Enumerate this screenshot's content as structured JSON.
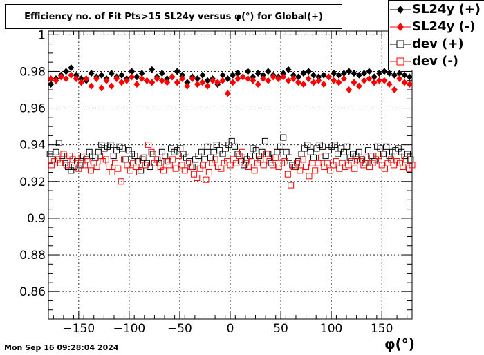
{
  "chart_data": {
    "type": "scatter",
    "title": "Efficiency no. of Fit Pts>15 SL24y versus φ(°) for Global(+)",
    "xlabel": "φ(°)",
    "ylabel": "",
    "xlim": [
      -180,
      180
    ],
    "ylim": [
      0.845,
      1.002
    ],
    "xticks": [
      -150,
      -100,
      -50,
      0,
      50,
      100,
      150
    ],
    "xtick_labels": [
      "−150",
      "−100",
      "−50",
      "0",
      "50",
      "100",
      "150"
    ],
    "yticks": [
      0.86,
      0.88,
      0.9,
      0.92,
      0.94,
      0.96,
      0.98,
      1
    ],
    "ytick_labels": [
      "0.86",
      "0.88",
      "0.9",
      "0.92",
      "0.94",
      "0.96",
      "0.98",
      "1"
    ],
    "grid": true,
    "legend_position": "top-right",
    "series": [
      {
        "name": "SL24y (+)",
        "color": "#000000",
        "marker": "filled-diamond",
        "values_start": -177.5,
        "x_step": 5,
        "values": [
          0.973,
          0.976,
          0.978,
          0.98,
          0.982,
          0.978,
          0.976,
          0.975,
          0.979,
          0.977,
          0.978,
          0.976,
          0.979,
          0.977,
          0.978,
          0.976,
          0.98,
          0.977,
          0.979,
          0.975,
          0.981,
          0.977,
          0.979,
          0.976,
          0.977,
          0.98,
          0.978,
          0.974,
          0.977,
          0.976,
          0.978,
          0.975,
          0.976,
          0.973,
          0.978,
          0.976,
          0.978,
          0.979,
          0.977,
          0.98,
          0.977,
          0.979,
          0.978,
          0.98,
          0.978,
          0.977,
          0.979,
          0.981,
          0.978,
          0.977,
          0.979,
          0.98,
          0.978,
          0.977,
          0.978,
          0.977,
          0.979,
          0.978,
          0.979,
          0.98,
          0.979,
          0.978,
          0.979,
          0.98,
          0.977,
          0.979,
          0.98,
          0.979,
          0.978,
          0.979,
          0.978,
          0.977
        ]
      },
      {
        "name": "SL24y (-)",
        "color": "#ff0000",
        "marker": "filled-diamond",
        "values_start": -177.5,
        "x_step": 5,
        "values": [
          0.976,
          0.975,
          0.977,
          0.976,
          0.978,
          0.976,
          0.974,
          0.976,
          0.972,
          0.976,
          0.971,
          0.975,
          0.972,
          0.976,
          0.974,
          0.975,
          0.977,
          0.973,
          0.976,
          0.975,
          0.974,
          0.976,
          0.975,
          0.974,
          0.977,
          0.974,
          0.976,
          0.972,
          0.976,
          0.973,
          0.974,
          0.972,
          0.975,
          0.974,
          0.975,
          0.968,
          0.974,
          0.976,
          0.977,
          0.976,
          0.975,
          0.973,
          0.976,
          0.975,
          0.977,
          0.976,
          0.977,
          0.975,
          0.976,
          0.974,
          0.973,
          0.976,
          0.974,
          0.975,
          0.973,
          0.977,
          0.975,
          0.974,
          0.976,
          0.97,
          0.974,
          0.972,
          0.975,
          0.976,
          0.974,
          0.975,
          0.975,
          0.973,
          0.97,
          0.976,
          0.974,
          0.973
        ]
      },
      {
        "name": "dev (+)",
        "color": "#000000",
        "marker": "open-square",
        "values_start": -178.5,
        "x_step": 3,
        "values": [
          0.935,
          0.932,
          0.936,
          0.941,
          0.934,
          0.93,
          0.928,
          0.926,
          0.928,
          0.931,
          0.929,
          0.934,
          0.932,
          0.936,
          0.934,
          0.933,
          0.936,
          0.94,
          0.938,
          0.939,
          0.94,
          0.934,
          0.937,
          0.939,
          0.938,
          0.932,
          0.937,
          0.935,
          0.934,
          0.931,
          0.926,
          0.933,
          0.93,
          0.928,
          0.935,
          0.932,
          0.93,
          0.936,
          0.934,
          0.931,
          0.938,
          0.936,
          0.937,
          0.938,
          0.935,
          0.933,
          0.931,
          0.928,
          0.932,
          0.934,
          0.936,
          0.932,
          0.939,
          0.933,
          0.936,
          0.94,
          0.937,
          0.935,
          0.938,
          0.94,
          0.942,
          0.939,
          0.935,
          0.931,
          0.929,
          0.932,
          0.934,
          0.938,
          0.937,
          0.934,
          0.936,
          0.942,
          0.935,
          0.93,
          0.933,
          0.936,
          0.939,
          0.944,
          0.936,
          0.933,
          0.929,
          0.928,
          0.931,
          0.935,
          0.938,
          0.94,
          0.936,
          0.933,
          0.938,
          0.94,
          0.939,
          0.934,
          0.937,
          0.939,
          0.94,
          0.935,
          0.938,
          0.936,
          0.939,
          0.933,
          0.935,
          0.934,
          0.936,
          0.932,
          0.93,
          0.937,
          0.934,
          0.931,
          0.939,
          0.938,
          0.935,
          0.939,
          0.934,
          0.936,
          0.937,
          0.938,
          0.936,
          0.934,
          0.935,
          0.932
        ]
      },
      {
        "name": "dev (-)",
        "color": "#ff0000",
        "marker": "open-square",
        "values_start": -177,
        "x_step": 3,
        "values": [
          0.929,
          0.931,
          0.932,
          0.93,
          0.935,
          0.929,
          0.934,
          0.932,
          0.93,
          0.927,
          0.933,
          0.929,
          0.931,
          0.926,
          0.93,
          0.928,
          0.934,
          0.931,
          0.932,
          0.928,
          0.925,
          0.93,
          0.927,
          0.92,
          0.932,
          0.929,
          0.926,
          0.93,
          0.928,
          0.925,
          0.932,
          0.929,
          0.94,
          0.936,
          0.93,
          0.932,
          0.928,
          0.926,
          0.931,
          0.929,
          0.932,
          0.927,
          0.934,
          0.929,
          0.926,
          0.93,
          0.928,
          0.924,
          0.922,
          0.927,
          0.929,
          0.921,
          0.925,
          0.93,
          0.932,
          0.928,
          0.927,
          0.93,
          0.931,
          0.929,
          0.932,
          0.93,
          0.934,
          0.936,
          0.93,
          0.928,
          0.931,
          0.926,
          0.93,
          0.932,
          0.929,
          0.935,
          0.931,
          0.929,
          0.933,
          0.928,
          0.93,
          0.931,
          0.924,
          0.918,
          0.928,
          0.93,
          0.926,
          0.932,
          0.928,
          0.923,
          0.93,
          0.926,
          0.93,
          0.933,
          0.928,
          0.93,
          0.926,
          0.929,
          0.931,
          0.927,
          0.93,
          0.928,
          0.929,
          0.931,
          0.927,
          0.932,
          0.931,
          0.929,
          0.933,
          0.928,
          0.93,
          0.932,
          0.934,
          0.929,
          0.927,
          0.93,
          0.932,
          0.929,
          0.931,
          0.93,
          0.928,
          0.932,
          0.927,
          0.929
        ]
      }
    ]
  },
  "footer": {
    "timestamp": "Mon Sep 16 09:28:04 2024"
  }
}
